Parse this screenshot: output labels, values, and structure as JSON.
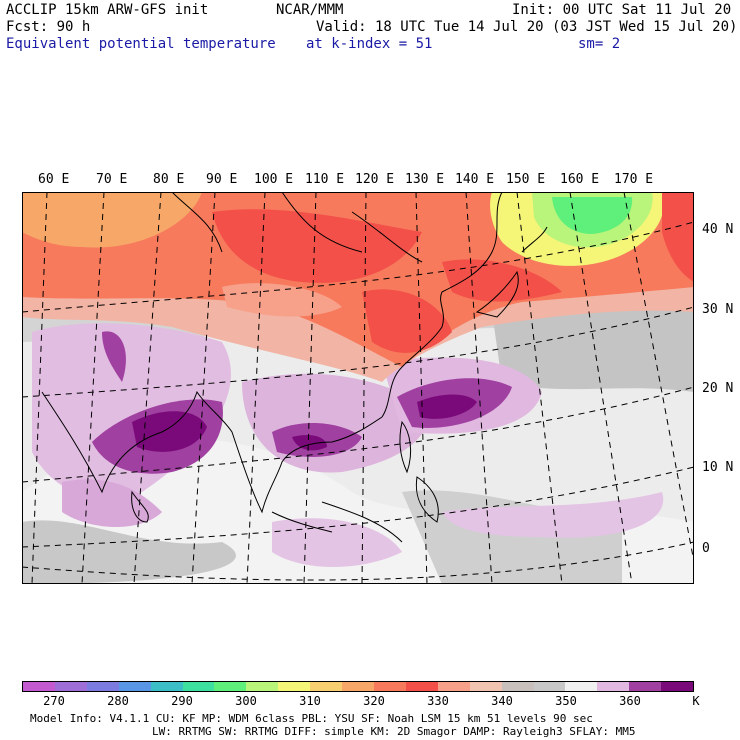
{
  "header": {
    "line1_left": "ACCLIP 15km ARW-GFS init",
    "line1_center": "NCAR/MMM",
    "line1_right": "Init: 00 UTC Sat 11 Jul 20",
    "line2_left": "Fcst:   90 h",
    "line2_right": "Valid: 18 UTC Tue 14 Jul 20 (03 JST Wed 15 Jul 20)",
    "line3_left": "Equivalent potential temperature",
    "line3_center": "at k-index =  51",
    "line3_right": "sm= 2"
  },
  "map": {
    "lon_labels": [
      "60 E",
      "70 E",
      "80 E",
      "90 E",
      "100 E",
      "110 E",
      "120 E",
      "130 E",
      "140 E",
      "150 E",
      "160 E",
      "170 E"
    ],
    "lat_labels": [
      "40 N",
      "30 N",
      "20 N",
      "10 N",
      "0"
    ]
  },
  "colorbar": {
    "colors": [
      "#c45ad0",
      "#9f6fd8",
      "#7c7ce0",
      "#5a96e6",
      "#3cbec6",
      "#3ee0a0",
      "#5ef07a",
      "#b8f57a",
      "#f5f578",
      "#f7cf70",
      "#f7a868",
      "#f77a5c",
      "#f25048",
      "#f7a08a",
      "#f0c4b0",
      "#c8c0bc",
      "#c8c8c8",
      "#f0f0f0",
      "#e0b8e0",
      "#a040a0",
      "#7a0a7a"
    ],
    "labels": [
      "270",
      "280",
      "290",
      "300",
      "310",
      "320",
      "330",
      "340",
      "350",
      "360",
      "K"
    ]
  },
  "footer": {
    "line1": "Model Info: V4.1.1    CU: KF       MP: WDM 6class  PBL: YSU      SF: Noah LSM    15 km    51 levels   90 sec",
    "line2": "LW: RRTMG   SW: RRTMG  DIFF: simple KM: 2D Smagor DAMP: Rayleigh3  SFLAY: MM5"
  }
}
